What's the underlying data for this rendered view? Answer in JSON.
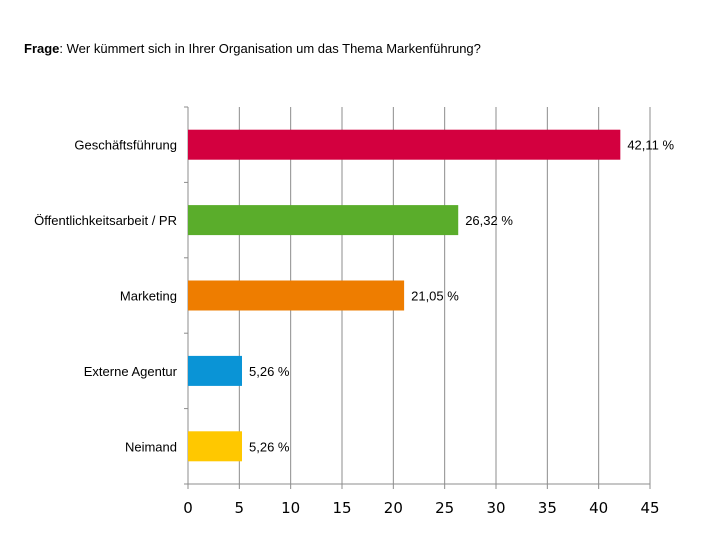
{
  "question": {
    "label": "Frage",
    "text": ": Wer kümmert sich in Ihrer Organisation um das Thema Markenführung?"
  },
  "chart_data": {
    "type": "bar",
    "orientation": "horizontal",
    "categories": [
      "Geschäftsführung",
      "Öffentlichkeitsarbeit / PR",
      "Marketing",
      "Externe Agentur",
      "Neimand"
    ],
    "values": [
      42.11,
      26.32,
      21.05,
      5.26,
      5.26
    ],
    "value_labels": [
      "42,11 %",
      "26,32 %",
      "21,05 %",
      "5,26 %",
      "5,26 %"
    ],
    "colors": [
      "#d3003f",
      "#5aad2b",
      "#ee7d00",
      "#0a94d6",
      "#ffc800"
    ],
    "xlim": [
      0,
      45
    ],
    "xticks": [
      0,
      5,
      10,
      15,
      20,
      25,
      30,
      35,
      40,
      45
    ],
    "grid": true,
    "title": "",
    "xlabel": "",
    "ylabel": ""
  }
}
